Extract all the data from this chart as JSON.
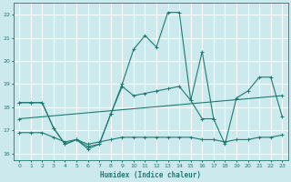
{
  "xlabel": "Humidex (Indice chaleur)",
  "xlim": [
    -0.5,
    23.5
  ],
  "ylim": [
    15.7,
    22.5
  ],
  "yticks": [
    16,
    17,
    18,
    19,
    20,
    21,
    22
  ],
  "xticks": [
    0,
    1,
    2,
    3,
    4,
    5,
    6,
    7,
    8,
    9,
    10,
    11,
    12,
    13,
    14,
    15,
    16,
    17,
    18,
    19,
    20,
    21,
    22,
    23
  ],
  "bg_color": "#cce9ee",
  "line_color": "#1e7b72",
  "grid_color": "#ffffff",
  "lines": [
    {
      "x": [
        0,
        1,
        2,
        3,
        4,
        5,
        6,
        7,
        8,
        9,
        10,
        11,
        12,
        13,
        14,
        15,
        16,
        17
      ],
      "y": [
        18.2,
        18.2,
        18.2,
        17.1,
        16.4,
        16.6,
        16.2,
        16.4,
        17.7,
        19.0,
        20.5,
        21.1,
        20.6,
        22.1,
        22.1,
        18.3,
        20.4,
        17.5
      ]
    },
    {
      "x": [
        0,
        1,
        2,
        3,
        4,
        5,
        6,
        7,
        8,
        9,
        10,
        11,
        12,
        13,
        14,
        15,
        16,
        17,
        18,
        19,
        20,
        21,
        22,
        23
      ],
      "y": [
        18.2,
        18.2,
        18.2,
        17.1,
        16.4,
        16.6,
        16.3,
        16.4,
        17.7,
        18.9,
        18.5,
        18.6,
        18.7,
        18.8,
        18.9,
        18.3,
        17.5,
        17.5,
        16.4,
        18.4,
        18.7,
        19.3,
        19.3,
        17.6
      ]
    },
    {
      "x": [
        0,
        1,
        2,
        3,
        4,
        5,
        6,
        7,
        8,
        9,
        10,
        11,
        12,
        13,
        14,
        15,
        16,
        17,
        18,
        19,
        20,
        21,
        22,
        23
      ],
      "y": [
        16.9,
        16.9,
        16.9,
        16.7,
        16.5,
        16.6,
        16.4,
        16.5,
        16.6,
        16.7,
        16.7,
        16.7,
        16.7,
        16.7,
        16.7,
        16.7,
        16.6,
        16.6,
        16.5,
        16.6,
        16.6,
        16.7,
        16.7,
        16.8
      ]
    },
    {
      "x": [
        0,
        23
      ],
      "y": [
        17.5,
        18.5
      ]
    }
  ]
}
